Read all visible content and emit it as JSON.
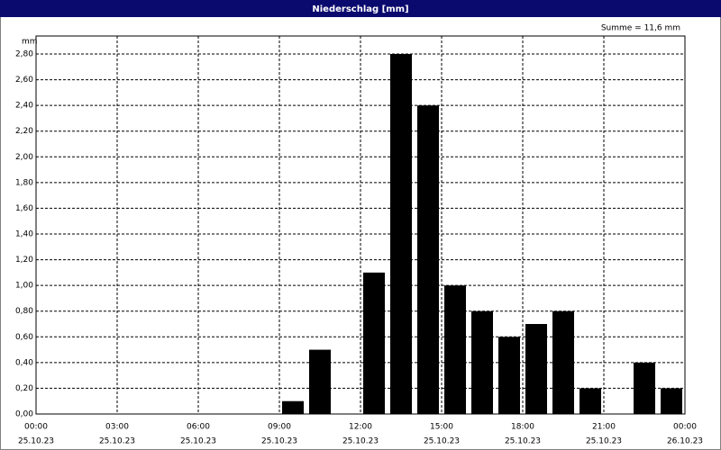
{
  "chart_data": {
    "type": "histogram",
    "title": "Niederschlag [mm]",
    "ylabel": "mm",
    "annotation": "Summe = 11,6 mm",
    "bins": [
      0,
      1,
      2,
      3,
      4,
      5,
      6,
      7,
      8,
      9,
      10,
      11,
      12,
      13,
      14,
      15,
      16,
      17,
      18,
      19,
      20,
      21,
      22,
      23,
      24
    ],
    "values": [
      0,
      0,
      0,
      0,
      0,
      0,
      0,
      0,
      0,
      0.1,
      0.5,
      0,
      1.1,
      2.8,
      2.4,
      1.0,
      0.8,
      0.6,
      0.7,
      0.8,
      0.2,
      0,
      0.4,
      0.2
    ],
    "color": "#000000",
    "xlim": [
      0,
      24
    ],
    "xticks": [
      {
        "value": 0,
        "label": "00:00"
      },
      {
        "value": 3,
        "label": "03:00"
      },
      {
        "value": 6,
        "label": "06:00"
      },
      {
        "value": 9,
        "label": "09:00"
      },
      {
        "value": 12,
        "label": "12:00"
      },
      {
        "value": 15,
        "label": "15:00"
      },
      {
        "value": 18,
        "label": "18:00"
      },
      {
        "value": 21,
        "label": "21:00"
      },
      {
        "value": 24,
        "label": "00:00"
      }
    ],
    "xtick_dates": [
      "25.10.23",
      "25.10.23",
      "25.10.23",
      "25.10.23",
      "25.10.23",
      "25.10.23",
      "25.10.23",
      "25.10.23",
      "26.10.23"
    ],
    "ylim": [
      0,
      2.94
    ],
    "yticks": [
      {
        "value": 0,
        "label": "0,00"
      },
      {
        "value": 0.2,
        "label": "0,20"
      },
      {
        "value": 0.4,
        "label": "0,40"
      },
      {
        "value": 0.6,
        "label": "0,60"
      },
      {
        "value": 0.8,
        "label": "0,80"
      },
      {
        "value": 1.0,
        "label": "1,00"
      },
      {
        "value": 1.2,
        "label": "1,20"
      },
      {
        "value": 1.4,
        "label": "1,40"
      },
      {
        "value": 1.6,
        "label": "1,60"
      },
      {
        "value": 1.8,
        "label": "1,80"
      },
      {
        "value": 2.0,
        "label": "2,00"
      },
      {
        "value": 2.2,
        "label": "2,20"
      },
      {
        "value": 2.4,
        "label": "2,40"
      },
      {
        "value": 2.6,
        "label": "2,60"
      },
      {
        "value": 2.8,
        "label": "2,80"
      }
    ],
    "grid": true
  }
}
